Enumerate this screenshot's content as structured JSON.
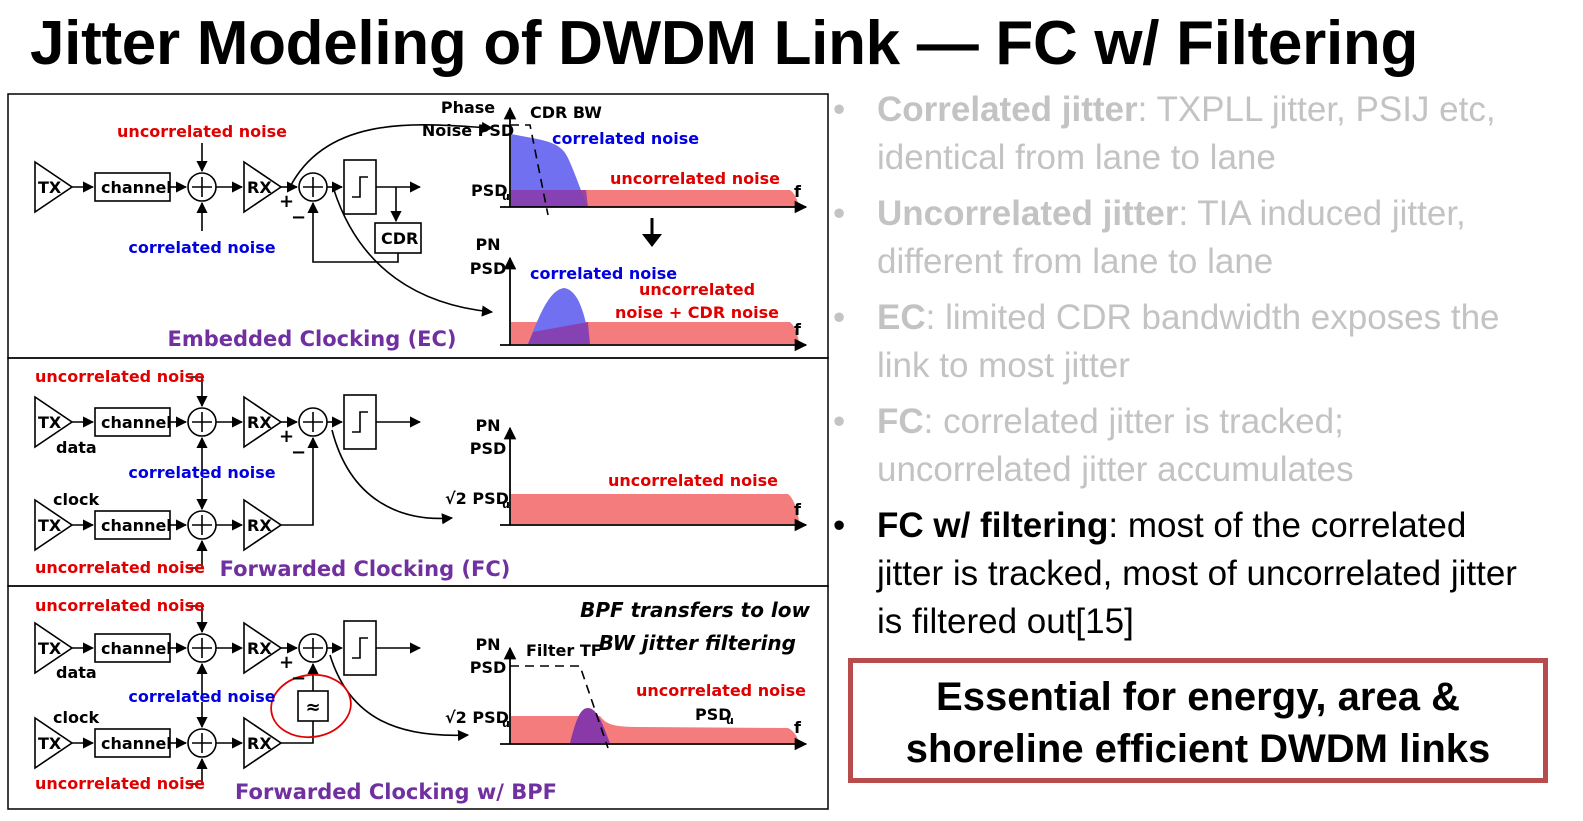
{
  "title": "Jitter Modeling of DWDM Link — FC w/ Filtering",
  "labels": {
    "tx": "TX",
    "rx": "RX",
    "channel": "channel",
    "cdr": "CDR",
    "data": "data",
    "clock": "clock",
    "plus": "+",
    "minus": "−",
    "uncorrelated_noise": "uncorrelated noise",
    "correlated_noise": "correlated noise",
    "phase": "Phase",
    "noise_psd": "Noise PSD",
    "pn": "PN",
    "psd": "PSD",
    "cdr_bw": "CDR BW",
    "psd_u": "PSD",
    "sub_u": "u",
    "sqrt2": "√2 PSD",
    "f": "f",
    "uncorrelated": "uncorrelated",
    "noise_cdr": "noise + CDR noise",
    "filter_tf": "Filter TF",
    "bpf_note_1": "BPF transfers to low",
    "bpf_note_2": "BW jitter filtering",
    "bpf_icon": "≈"
  },
  "panels": {
    "ec": "Embedded Clocking (EC)",
    "fc": "Forwarded Clocking (FC)",
    "bpf": "Forwarded Clocking w/ BPF"
  },
  "bullets": [
    {
      "term": "Correlated jitter",
      "rest": ": TXPLL jitter, PSIJ etc, identical from lane to lane"
    },
    {
      "term": "Uncorrelated jitter",
      "rest": ": TIA induced jitter, different from lane to lane"
    },
    {
      "term": "EC",
      "rest": ": limited CDR bandwidth exposes the link to most jitter"
    },
    {
      "term": "FC",
      "rest": ": correlated jitter is tracked; uncorrelated jitter accumulates"
    },
    {
      "term": "FC w/ filtering",
      "rest": ": most of the correlated jitter is tracked, most of uncorrelated jitter is filtered out[15]"
    }
  ],
  "bullet_marker": "•",
  "callout": {
    "line1": "Essential for energy, area &",
    "line2": "shoreline efficient DWDM links"
  },
  "colors": {
    "uncorrelated": "#e00000",
    "correlated": "#0000e0",
    "panel_label": "#7030a0",
    "psd_red_fill": "#f47c7c",
    "psd_blue_fill": "#7070f0",
    "overlap_fill": "#8a3aa8",
    "callout_border": "#b84c4c",
    "inactive_text": "#c3c3c3"
  }
}
